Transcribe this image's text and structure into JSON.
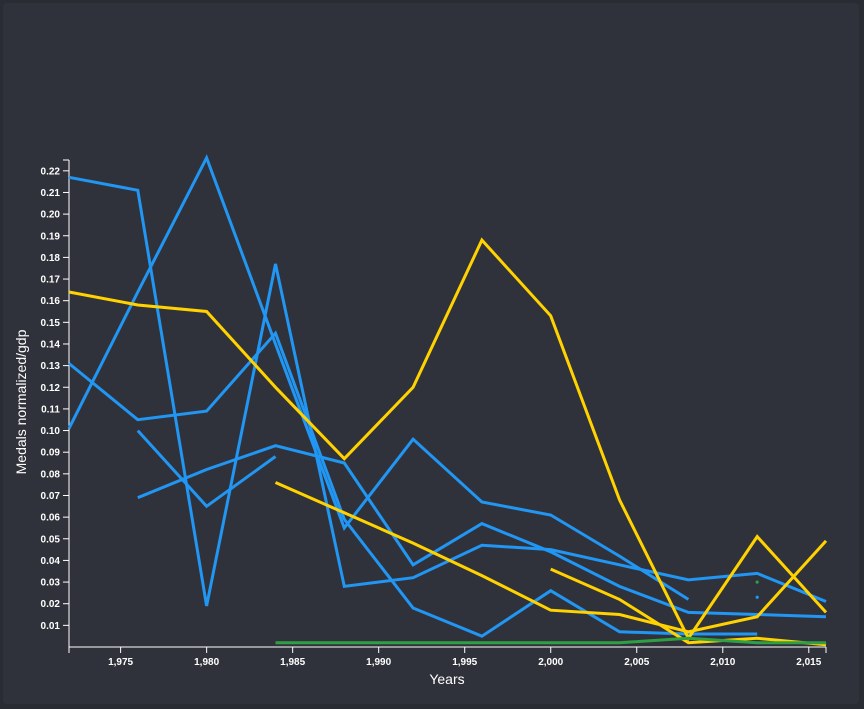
{
  "chart_data": {
    "type": "line",
    "title": "",
    "xlabel": "Years",
    "ylabel": "Medals normalized/gdp",
    "xlim": [
      1972,
      2016
    ],
    "ylim": [
      0,
      0.225
    ],
    "x_ticks": [
      "1,975",
      "1,980",
      "1,985",
      "1,990",
      "1,995",
      "2,000",
      "2,005",
      "2,010",
      "2,015"
    ],
    "y_ticks": [
      "0.01",
      "0.02",
      "0.03",
      "0.04",
      "0.05",
      "0.06",
      "0.07",
      "0.08",
      "0.09",
      "0.10",
      "0.11",
      "0.12",
      "0.13",
      "0.14",
      "0.15",
      "0.16",
      "0.17",
      "0.18",
      "0.19",
      "0.20",
      "0.21",
      "0.22"
    ],
    "colors": {
      "blue": "#2196f3",
      "yellow": "#ffd200",
      "green": "#2ea043",
      "axis": "#ffffff"
    },
    "series": [
      {
        "color": "blue",
        "points": [
          [
            1972,
            0.217
          ],
          [
            1976,
            0.211
          ],
          [
            1980,
            0.019
          ],
          [
            1984,
            0.177
          ],
          [
            1988,
            0.028
          ],
          [
            1992,
            0.032
          ],
          [
            1996,
            0.047
          ],
          [
            2000,
            0.045
          ],
          [
            2004,
            0.038
          ],
          [
            2008,
            0.031
          ],
          [
            2012,
            0.034
          ],
          [
            2016,
            0.021
          ]
        ]
      },
      {
        "color": "blue",
        "points": [
          [
            1972,
            0.101
          ],
          [
            1976,
            0.164
          ],
          [
            1980,
            0.226
          ],
          [
            1984,
            0.14
          ],
          [
            1988,
            0.055
          ],
          [
            1992,
            0.096
          ],
          [
            1996,
            0.067
          ],
          [
            2000,
            0.061
          ],
          [
            2004,
            0.042
          ],
          [
            2008,
            0.022
          ]
        ]
      },
      {
        "color": "blue",
        "points": [
          [
            1972,
            0.131
          ],
          [
            1976,
            0.105
          ],
          [
            1980,
            0.109
          ],
          [
            1984,
            0.145
          ],
          [
            1988,
            0.059
          ],
          [
            1992,
            0.018
          ],
          [
            1996,
            0.005
          ],
          [
            2000,
            0.026
          ],
          [
            2004,
            0.007
          ],
          [
            2008,
            0.006
          ],
          [
            2012,
            0.006
          ]
        ]
      },
      {
        "color": "blue",
        "points": [
          [
            1976,
            0.1
          ],
          [
            1980,
            0.065
          ],
          [
            1984,
            0.088
          ]
        ]
      },
      {
        "color": "blue",
        "points": [
          [
            1976,
            0.069
          ],
          [
            1980,
            0.082
          ],
          [
            1984,
            0.093
          ],
          [
            1988,
            0.085
          ],
          [
            1992,
            0.038
          ],
          [
            1996,
            0.057
          ],
          [
            2000,
            0.044
          ],
          [
            2004,
            0.028
          ],
          [
            2008,
            0.016
          ],
          [
            2012,
            0.015
          ],
          [
            2016,
            0.014
          ]
        ]
      },
      {
        "color": "blue",
        "points": [
          [
            2012,
            0.023
          ]
        ]
      },
      {
        "color": "green",
        "points": [
          [
            2012,
            0.03
          ]
        ]
      },
      {
        "color": "yellow",
        "points": [
          [
            1972,
            0.164
          ],
          [
            1976,
            0.158
          ],
          [
            1980,
            0.155
          ],
          [
            1984,
            0.12
          ],
          [
            1988,
            0.087
          ],
          [
            1992,
            0.12
          ],
          [
            1996,
            0.188
          ],
          [
            2000,
            0.153
          ],
          [
            2004,
            0.068
          ],
          [
            2008,
            0.004
          ],
          [
            2012,
            0.051
          ],
          [
            2016,
            0.016
          ]
        ]
      },
      {
        "color": "yellow",
        "points": [
          [
            1984,
            0.076
          ],
          [
            1988,
            0.062
          ],
          [
            1992,
            0.048
          ],
          [
            1996,
            0.033
          ],
          [
            2000,
            0.017
          ],
          [
            2004,
            0.015
          ],
          [
            2008,
            0.007
          ],
          [
            2012,
            0.014
          ],
          [
            2016,
            0.049
          ]
        ]
      },
      {
        "color": "yellow",
        "points": [
          [
            2000,
            0.036
          ],
          [
            2004,
            0.022
          ],
          [
            2008,
            0.002
          ],
          [
            2012,
            0.004
          ],
          [
            2016,
            0.001
          ]
        ]
      },
      {
        "color": "green",
        "points": [
          [
            1984,
            0.002
          ],
          [
            1988,
            0.002
          ],
          [
            1992,
            0.002
          ],
          [
            1996,
            0.002
          ],
          [
            2000,
            0.002
          ],
          [
            2004,
            0.002
          ],
          [
            2008,
            0.004
          ],
          [
            2012,
            0.002
          ],
          [
            2016,
            0.002
          ]
        ]
      }
    ]
  }
}
